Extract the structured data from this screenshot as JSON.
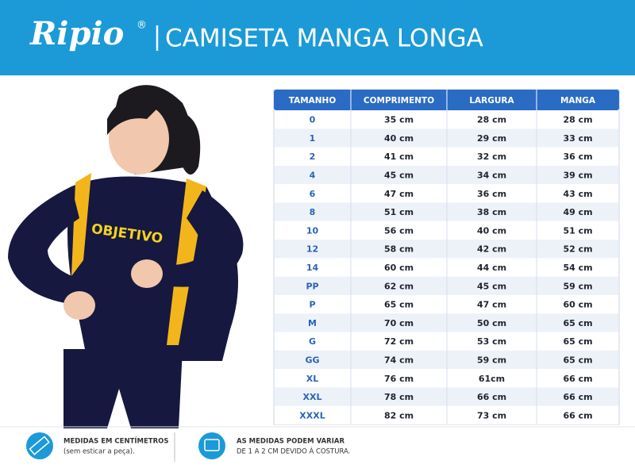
{
  "header": {
    "logo": "Ripio",
    "registered": "®",
    "title": "CAMISETA MANGA LONGA"
  },
  "image": {
    "shirt_text": "OBJETIVO"
  },
  "table": {
    "columns": [
      "TAMANHO",
      "COMPRIMENTO",
      "LARGURA",
      "MANGA"
    ],
    "rows": [
      [
        "0",
        "35 cm",
        "28 cm",
        "28 cm"
      ],
      [
        "1",
        "40 cm",
        "29 cm",
        "33 cm"
      ],
      [
        "2",
        "41 cm",
        "32 cm",
        "36 cm"
      ],
      [
        "4",
        "45 cm",
        "34 cm",
        "39 cm"
      ],
      [
        "6",
        "47 cm",
        "36 cm",
        "43 cm"
      ],
      [
        "8",
        "51 cm",
        "38 cm",
        "49 cm"
      ],
      [
        "10",
        "56 cm",
        "40 cm",
        "51 cm"
      ],
      [
        "12",
        "58 cm",
        "42 cm",
        "52 cm"
      ],
      [
        "14",
        "60 cm",
        "44 cm",
        "54 cm"
      ],
      [
        "PP",
        "62 cm",
        "45 cm",
        "59 cm"
      ],
      [
        "P",
        "65 cm",
        "47 cm",
        "60 cm"
      ],
      [
        "M",
        "70 cm",
        "50 cm",
        "65 cm"
      ],
      [
        "G",
        "72 cm",
        "53 cm",
        "65 cm"
      ],
      [
        "GG",
        "74 cm",
        "59 cm",
        "65 cm"
      ],
      [
        "XL",
        "76 cm",
        "61cm",
        "66 cm"
      ],
      [
        "XXL",
        "78 cm",
        "66 cm",
        "66 cm"
      ],
      [
        "XXXL",
        "82 cm",
        "73 cm",
        "66 cm"
      ]
    ]
  },
  "footer": {
    "notes": [
      {
        "title": "MEDIDAS EM CENTÍMETROS",
        "text": "(sem esticar a peça)."
      },
      {
        "title": "AS MEDIDAS PODEM VARIAR",
        "text": "DE 1 A 2 CM DEVIDO À COSTURA."
      }
    ]
  }
}
